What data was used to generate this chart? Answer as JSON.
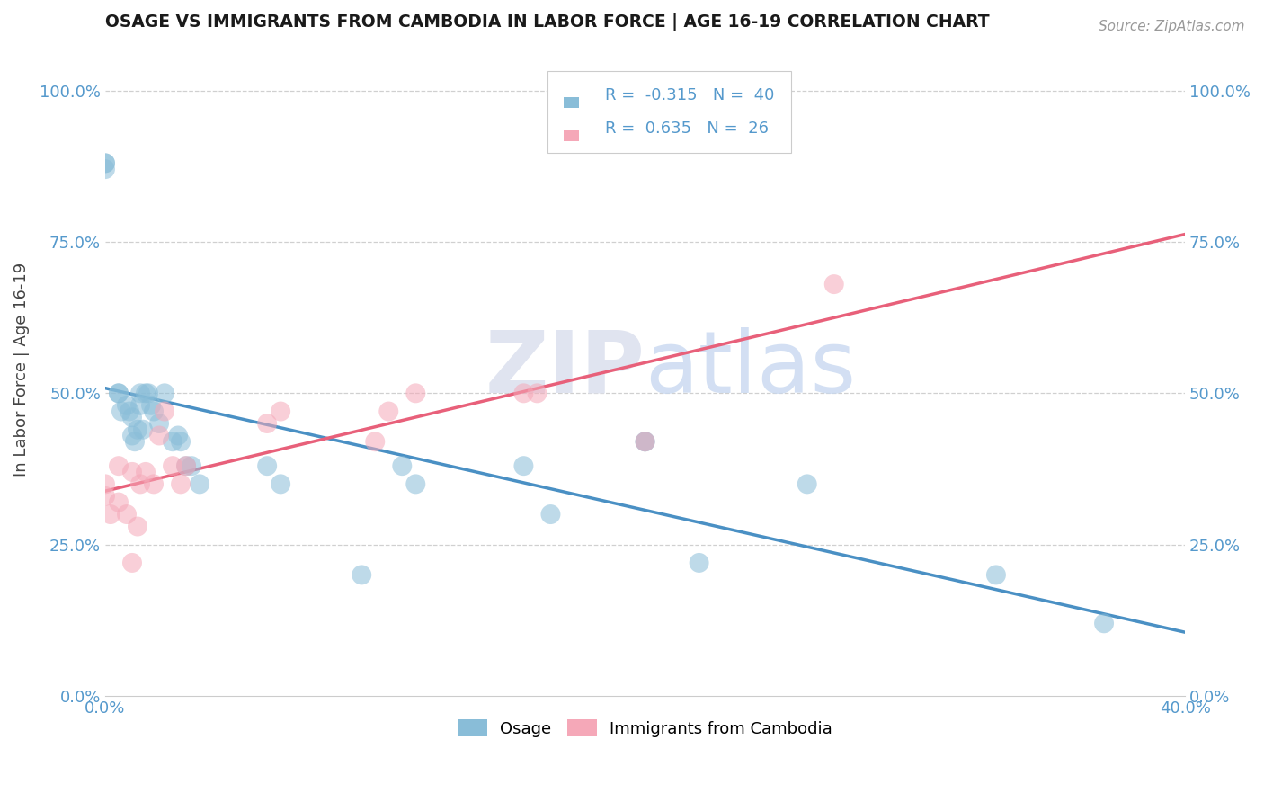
{
  "title": "OSAGE VS IMMIGRANTS FROM CAMBODIA IN LABOR FORCE | AGE 16-19 CORRELATION CHART",
  "source": "Source: ZipAtlas.com",
  "ylabel": "In Labor Force | Age 16-19",
  "xlim": [
    0.0,
    0.4
  ],
  "ylim": [
    0.0,
    1.08
  ],
  "ytick_vals": [
    0.0,
    0.25,
    0.5,
    0.75,
    1.0
  ],
  "xtick_vals": [
    0.0,
    0.05,
    0.1,
    0.15,
    0.2,
    0.25,
    0.3,
    0.35,
    0.4
  ],
  "xtick_labels": [
    "0.0%",
    "",
    "",
    "",
    "",
    "",
    "",
    "",
    "40.0%"
  ],
  "legend_label1": "Osage",
  "legend_label2": "Immigrants from Cambodia",
  "R1": "-0.315",
  "N1": "40",
  "R2": "0.635",
  "N2": "26",
  "color_blue": "#89bdd8",
  "color_pink": "#f5a8b8",
  "line_color_blue": "#4a90c4",
  "line_color_pink": "#e8607a",
  "tick_color": "#5599cc",
  "osage_x": [
    0.0,
    0.0,
    0.0,
    0.005,
    0.005,
    0.006,
    0.008,
    0.009,
    0.01,
    0.01,
    0.011,
    0.012,
    0.013,
    0.013,
    0.014,
    0.015,
    0.016,
    0.017,
    0.018,
    0.02,
    0.022,
    0.025,
    0.027,
    0.028,
    0.03,
    0.032,
    0.035,
    0.06,
    0.065,
    0.11,
    0.115,
    0.155,
    0.165,
    0.2,
    0.22,
    0.26,
    0.33,
    0.37,
    0.2,
    0.095
  ],
  "osage_y": [
    0.87,
    0.88,
    0.88,
    0.5,
    0.5,
    0.47,
    0.48,
    0.47,
    0.46,
    0.43,
    0.42,
    0.44,
    0.5,
    0.48,
    0.44,
    0.5,
    0.5,
    0.48,
    0.47,
    0.45,
    0.5,
    0.42,
    0.43,
    0.42,
    0.38,
    0.38,
    0.35,
    0.38,
    0.35,
    0.38,
    0.35,
    0.38,
    0.3,
    0.42,
    0.22,
    0.35,
    0.2,
    0.12,
    0.42,
    0.2
  ],
  "cambodia_x": [
    0.0,
    0.0,
    0.002,
    0.005,
    0.008,
    0.01,
    0.012,
    0.013,
    0.015,
    0.018,
    0.02,
    0.022,
    0.025,
    0.028,
    0.03,
    0.06,
    0.065,
    0.1,
    0.105,
    0.115,
    0.155,
    0.16,
    0.2,
    0.27,
    0.005,
    0.01
  ],
  "cambodia_y": [
    0.35,
    0.33,
    0.3,
    0.38,
    0.3,
    0.37,
    0.28,
    0.35,
    0.37,
    0.35,
    0.43,
    0.47,
    0.38,
    0.35,
    0.38,
    0.45,
    0.47,
    0.42,
    0.47,
    0.5,
    0.5,
    0.5,
    0.42,
    0.68,
    0.32,
    0.22
  ],
  "background_color": "#ffffff",
  "grid_color": "#d0d0d0",
  "watermark_color": "#e0e4f0"
}
